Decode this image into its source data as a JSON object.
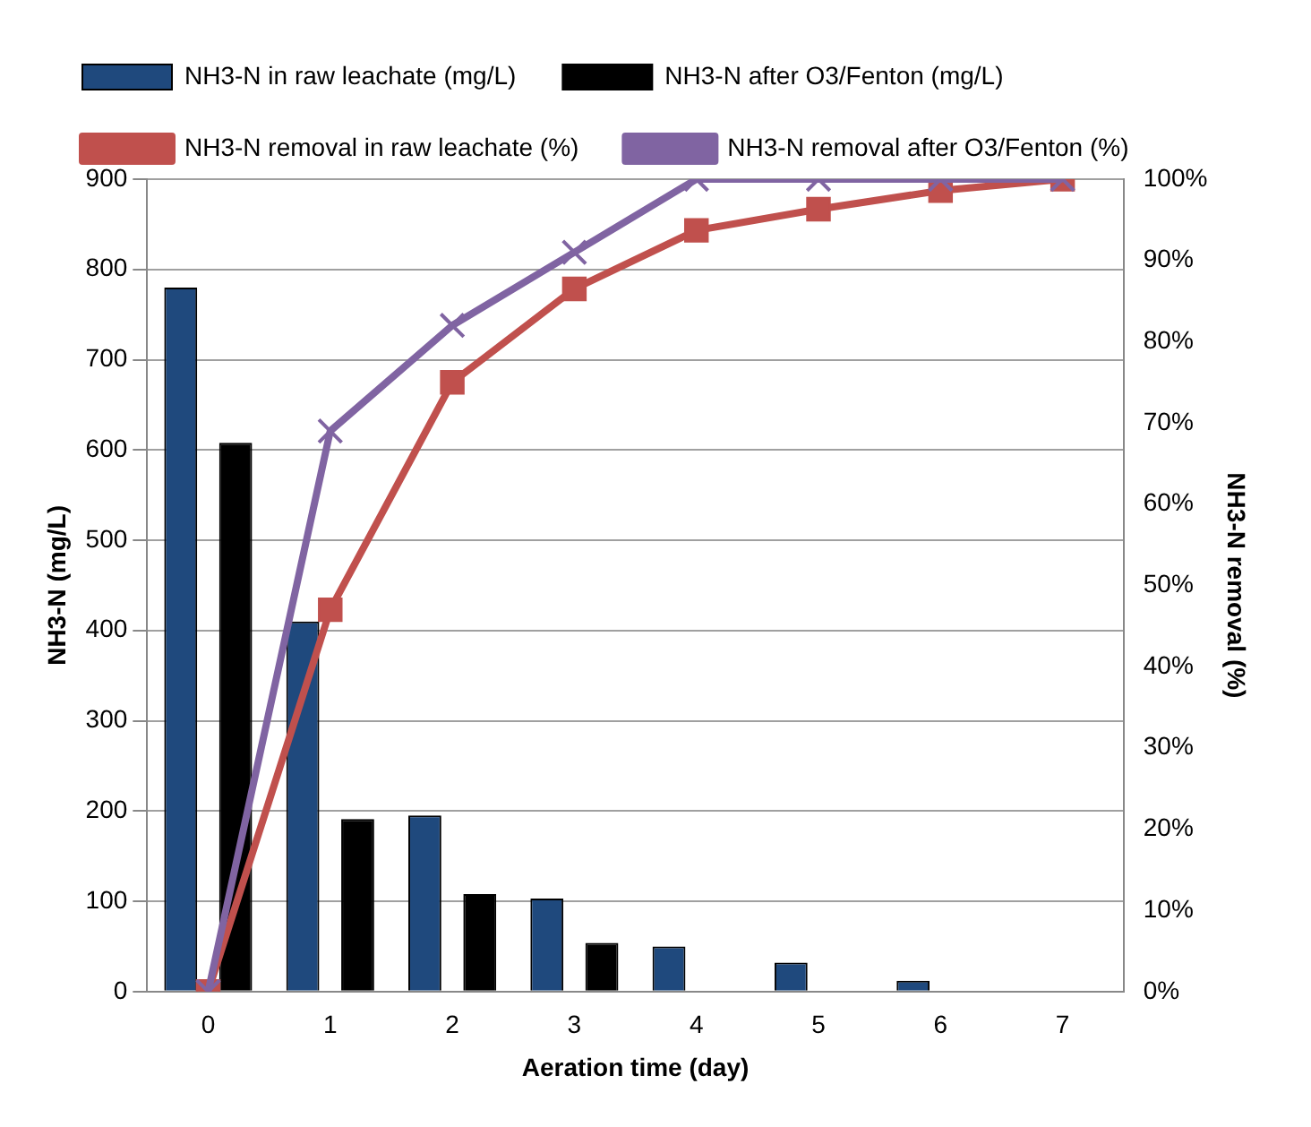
{
  "chart_data": {
    "type": "bar",
    "xlabel": "Aeration time (day)",
    "ylabel": "NH3-N (mg/L)",
    "y2label": "NH3-N removal (%)",
    "categories": [
      "0",
      "1",
      "2",
      "3",
      "4",
      "5",
      "6",
      "7"
    ],
    "series": [
      {
        "name": "NH3-N in raw leachate (mg/L)",
        "color": "#1f497d",
        "values": [
          780,
          410,
          195,
          103,
          50,
          32,
          12,
          0
        ]
      },
      {
        "name": "NH3-N after O3/Fenton (mg/L)",
        "color": "#000000",
        "values": [
          608,
          191,
          108,
          54,
          0,
          0,
          0,
          0
        ]
      },
      {
        "name": "NH3-N removal in raw leachate (%)",
        "type": "line",
        "axis": "y2",
        "marker": "square",
        "color": "#c0504d",
        "values": [
          0,
          47,
          75,
          86.5,
          93.7,
          96.3,
          98.6,
          100
        ]
      },
      {
        "name": "NH3-N removal after O3/Fenton (%)",
        "type": "line",
        "axis": "y2",
        "marker": "cross",
        "color": "#8064a2",
        "values": [
          0,
          69,
          82,
          91,
          100,
          100,
          100,
          100
        ]
      }
    ],
    "ylim": [
      0,
      900
    ],
    "yticks": [
      0,
      100,
      200,
      300,
      400,
      500,
      600,
      700,
      800,
      900
    ],
    "y2lim": [
      0,
      100
    ],
    "y2ticks": [
      {
        "value": 0,
        "label": "0%"
      },
      {
        "value": 10,
        "label": "10%"
      },
      {
        "value": 20,
        "label": "20%"
      },
      {
        "value": 30,
        "label": "30%"
      },
      {
        "value": 40,
        "label": "40%"
      },
      {
        "value": 50,
        "label": "50%"
      },
      {
        "value": 60,
        "label": "60%"
      },
      {
        "value": 70,
        "label": "70%"
      },
      {
        "value": 80,
        "label": "80%"
      },
      {
        "value": 90,
        "label": "90%"
      },
      {
        "value": 100,
        "label": "100%"
      }
    ],
    "grid": "y",
    "legend": "top",
    "line_style": "solid"
  }
}
